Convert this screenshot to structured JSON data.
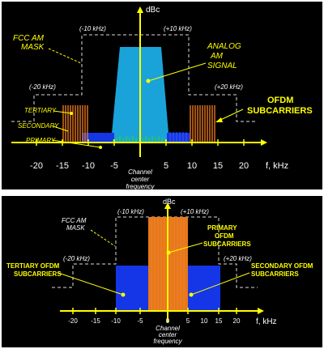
{
  "top_panel": {
    "axis_label_y": "dBc",
    "axis_label_x": "f, kHz",
    "ticks": [
      "-20",
      "-15",
      "-10",
      "-5",
      "0",
      "5",
      "10",
      "15",
      "20"
    ],
    "center_label": [
      "Channel",
      "center",
      "frequency"
    ],
    "mask_label": [
      "FCC AM",
      "MASK"
    ],
    "offsets": {
      "m10": "(-10 kHz)",
      "p10": "(+10 kHz)",
      "m20": "(-20 kHz)",
      "p20": "(+20 kHz)"
    },
    "analog_label": [
      "ANALOG",
      "AM",
      "SIGNAL"
    ],
    "ofdm_label": [
      "OFDM",
      "SUBCARRIERS"
    ],
    "tertiary": "TERTIARY",
    "secondary": "SECONDARY",
    "primary": "PRIMARY"
  },
  "bottom_panel": {
    "axis_label_y": "dBc",
    "axis_label_x": "f, kHz",
    "ticks": [
      "-20",
      "-15",
      "-10",
      "-5",
      "0",
      "5",
      "10",
      "15",
      "20"
    ],
    "center_label": [
      "Channel",
      "center",
      "frequency"
    ],
    "mask_label": [
      "FCC AM",
      "MASK"
    ],
    "offsets": {
      "m10": "(-10 kHz)",
      "p10": "(+10 kHz)",
      "m20": "(-20 kHz)",
      "p20": "(+20 kHz)"
    },
    "primary_label": [
      "PRIMARY",
      "OFDM",
      "SUBCARRIERS"
    ],
    "tertiary_label": [
      "TERTIARY OFDM",
      "SUBCARRIERS"
    ],
    "secondary_label": [
      "SECONDARY OFDM",
      "SUBCARRIERS"
    ]
  },
  "colors": {
    "background": "#000000",
    "axis": "#ffff00",
    "analog": "#1aa3d9",
    "ofdm_orange": "#e8771a",
    "ofdm_blue": "#1436e6",
    "green": "#33dd22",
    "mask": "#dddddd"
  }
}
